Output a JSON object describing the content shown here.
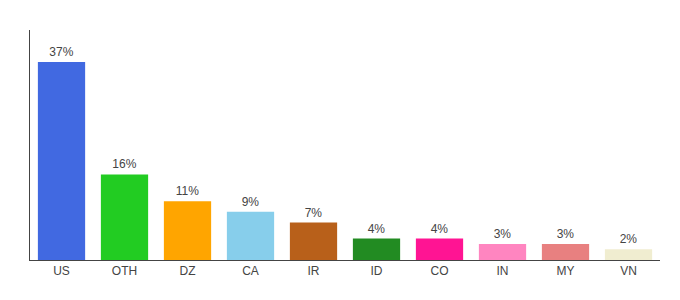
{
  "chart_data": {
    "type": "bar",
    "categories": [
      "US",
      "OTH",
      "DZ",
      "CA",
      "IR",
      "ID",
      "CO",
      "IN",
      "MY",
      "VN"
    ],
    "values": [
      37,
      16,
      11,
      9,
      7,
      4,
      4,
      3,
      3,
      2
    ],
    "value_labels": [
      "37%",
      "16%",
      "11%",
      "9%",
      "7%",
      "4%",
      "4%",
      "3%",
      "3%",
      "2%"
    ],
    "colors": [
      "#4169E1",
      "#22CC22",
      "#FFA500",
      "#87CEEB",
      "#B8601A",
      "#228B22",
      "#FF1493",
      "#FF85C0",
      "#E88080",
      "#F0EDD0"
    ],
    "ylim": [
      0,
      43
    ],
    "data_labels": true,
    "tick_labels": "x",
    "grid": false
  }
}
